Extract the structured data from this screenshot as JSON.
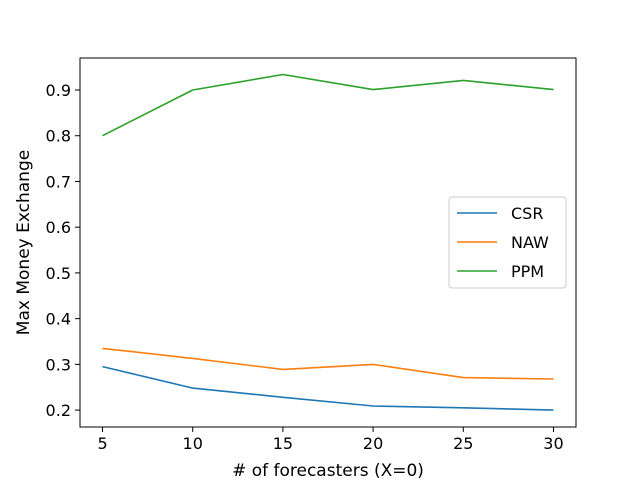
{
  "chart_data": {
    "type": "line",
    "title": "",
    "xlabel": "# of forecasters (X=0)",
    "ylabel": "Max Money Exchange",
    "x": [
      5,
      10,
      15,
      20,
      25,
      30
    ],
    "xticks": [
      5,
      10,
      15,
      20,
      25,
      30
    ],
    "xtick_labels": [
      "5",
      "10",
      "15",
      "20",
      "25",
      "30"
    ],
    "xlim": [
      3.75,
      31.25
    ],
    "yticks": [
      0.2,
      0.3,
      0.4,
      0.5,
      0.6,
      0.7,
      0.8,
      0.9
    ],
    "ytick_labels": [
      "0.2",
      "0.3",
      "0.4",
      "0.5",
      "0.6",
      "0.7",
      "0.8",
      "0.9"
    ],
    "ylim": [
      0.163,
      0.97
    ],
    "grid": false,
    "legend_position": "center-right",
    "series": [
      {
        "name": "CSR",
        "color": "#1f77b4",
        "values": [
          0.295,
          0.248,
          0.228,
          0.209,
          0.205,
          0.2
        ]
      },
      {
        "name": "NAW",
        "color": "#ff7f0e",
        "values": [
          0.335,
          0.313,
          0.289,
          0.3,
          0.271,
          0.268
        ]
      },
      {
        "name": "PPM",
        "color": "#2ca02c",
        "values": [
          0.8,
          0.9,
          0.934,
          0.901,
          0.921,
          0.901
        ]
      }
    ]
  }
}
